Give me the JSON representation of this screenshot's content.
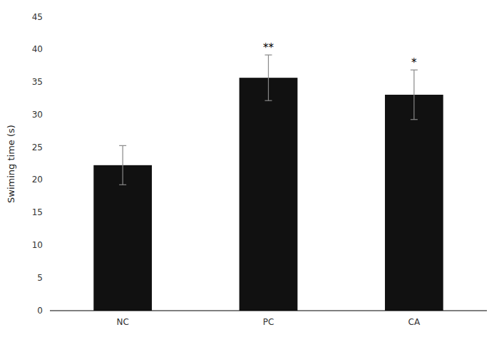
{
  "chart_data": {
    "type": "bar",
    "categories": [
      "NC",
      "PC",
      "CA"
    ],
    "values": [
      22.3,
      35.7,
      33.1
    ],
    "errors": [
      3.0,
      3.5,
      3.8
    ],
    "color": "#111111",
    "ylabel": "Swiming time (s)",
    "ylim": [
      0,
      45
    ],
    "yticks": [
      0,
      5,
      10,
      15,
      20,
      25,
      30,
      35,
      40,
      45
    ],
    "annotations": [
      {
        "category": "PC",
        "text": "**"
      },
      {
        "category": "CA",
        "text": "*"
      }
    ],
    "grid": false
  }
}
